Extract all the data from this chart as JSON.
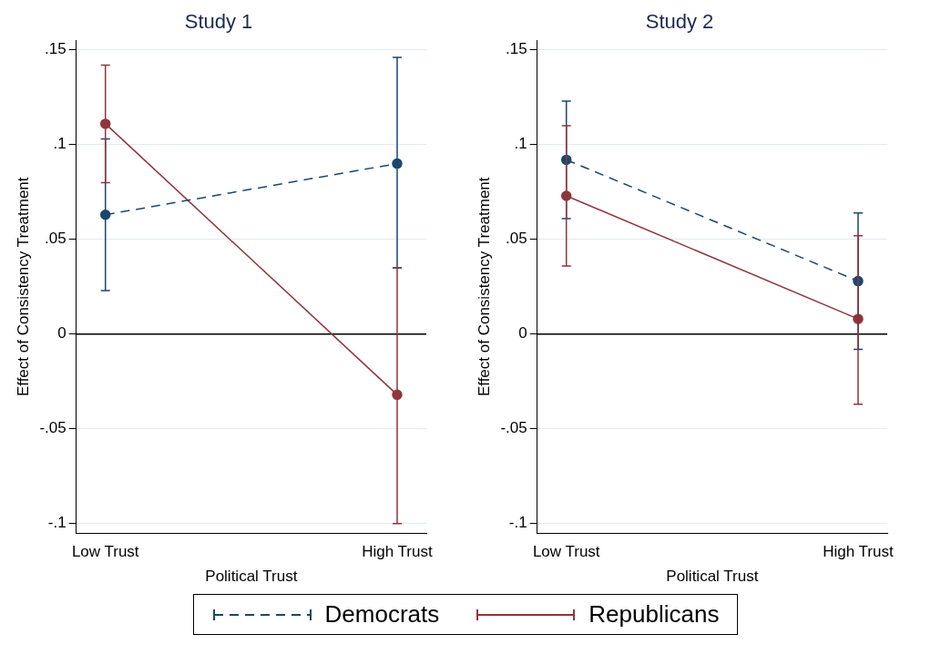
{
  "chart_data": [
    {
      "type": "line",
      "title": "Study 1",
      "xlabel": "Political Trust",
      "ylabel": "Effect of Consistency Treatment",
      "categories": [
        "Low Trust",
        "High Trust"
      ],
      "ylim": [
        -0.105,
        0.155
      ],
      "yticks": [
        {
          "value": 0.15,
          "label": ".15"
        },
        {
          "value": 0.1,
          "label": ".1"
        },
        {
          "value": 0.05,
          "label": ".05"
        },
        {
          "value": 0,
          "label": "0"
        },
        {
          "value": -0.05,
          "label": "-.05"
        },
        {
          "value": -0.1,
          "label": "-.1"
        }
      ],
      "grid": "y",
      "marker": "circle",
      "legend": "bottom",
      "ref_lines": [
        {
          "axis": "y",
          "value": 0,
          "color": "#000000"
        }
      ],
      "series": [
        {
          "name": "Democrats",
          "color": "#1a476f",
          "line_style": "dashed",
          "values": [
            0.063,
            0.09
          ],
          "errors": [
            [
              0.023,
              0.103
            ],
            [
              0.035,
              0.146
            ]
          ]
        },
        {
          "name": "Republicans",
          "color": "#90353b",
          "line_style": "solid",
          "values": [
            0.111,
            -0.032
          ],
          "errors": [
            [
              0.08,
              0.142
            ],
            [
              -0.1,
              0.035
            ]
          ]
        }
      ]
    },
    {
      "type": "line",
      "title": "Study 2",
      "xlabel": "Political Trust",
      "ylabel": "Effect of Consistency Treatment",
      "categories": [
        "Low Trust",
        "High Trust"
      ],
      "ylim": [
        -0.105,
        0.155
      ],
      "yticks": [
        {
          "value": 0.15,
          "label": ".15"
        },
        {
          "value": 0.1,
          "label": ".1"
        },
        {
          "value": 0.05,
          "label": ".05"
        },
        {
          "value": 0,
          "label": "0"
        },
        {
          "value": -0.05,
          "label": "-.05"
        },
        {
          "value": -0.1,
          "label": "-.1"
        }
      ],
      "grid": "y",
      "marker": "circle",
      "legend": "bottom",
      "ref_lines": [
        {
          "axis": "y",
          "value": 0,
          "color": "#000000"
        }
      ],
      "series": [
        {
          "name": "Democrats",
          "color": "#1a476f",
          "line_style": "dashed",
          "values": [
            0.092,
            0.028
          ],
          "errors": [
            [
              0.061,
              0.123
            ],
            [
              -0.008,
              0.064
            ]
          ]
        },
        {
          "name": "Republicans",
          "color": "#90353b",
          "line_style": "solid",
          "values": [
            0.073,
            0.008
          ],
          "errors": [
            [
              0.036,
              0.11
            ],
            [
              -0.037,
              0.052
            ]
          ]
        }
      ]
    }
  ]
}
